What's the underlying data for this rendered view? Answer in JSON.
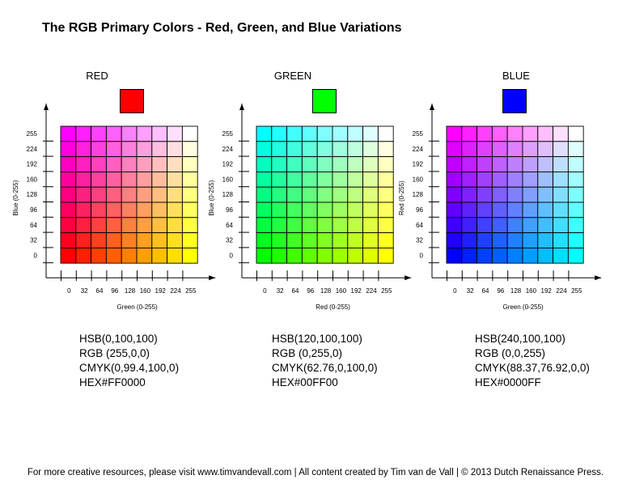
{
  "title": "The RGB Primary Colors - Red, Green, and Blue Variations",
  "footer": "For more creative resources, please visit www.timvandevall.com | All content created by Tim van de Vall | © 2013 Dutch Renaissance Press.",
  "panels": [
    {
      "name": "RED",
      "swatch_color": "#FF0000",
      "x_label": "Green (0-255)",
      "y_label": "Blue (0-255)",
      "x_ticks": [
        "0",
        "32",
        "64",
        "96",
        "128",
        "160",
        "192",
        "224",
        "255"
      ],
      "y_ticks": [
        "255",
        "224",
        "192",
        "160",
        "128",
        "96",
        "64",
        "32",
        "0"
      ],
      "base_rgb": [
        255,
        0,
        0
      ],
      "x_channel": 1,
      "y_channel": 2,
      "hsb": "HSB(0,100,100)",
      "rgb": "RGB (255,0,0)",
      "cmyk": "CMYK(0,99.4,100,0)",
      "hex": "HEX#FF0000"
    },
    {
      "name": "GREEN",
      "swatch_color": "#00FF00",
      "x_label": "Red (0-255)",
      "y_label": "Blue (0-255)",
      "x_ticks": [
        "0",
        "32",
        "64",
        "96",
        "128",
        "160",
        "192",
        "224",
        "255"
      ],
      "y_ticks": [
        "255",
        "224",
        "192",
        "160",
        "128",
        "96",
        "64",
        "32",
        "0"
      ],
      "base_rgb": [
        0,
        255,
        0
      ],
      "x_channel": 0,
      "y_channel": 2,
      "hsb": "HSB(120,100,100)",
      "rgb": "RGB (0,255,0)",
      "cmyk": "CMYK(62.76,0,100,0)",
      "hex": "HEX#00FF00"
    },
    {
      "name": "BLUE",
      "swatch_color": "#0000FF",
      "x_label": "Green (0-255)",
      "y_label": "Red (0-255)",
      "x_ticks": [
        "0",
        "32",
        "64",
        "96",
        "128",
        "160",
        "192",
        "224",
        "255"
      ],
      "y_ticks": [
        "255",
        "224",
        "192",
        "160",
        "128",
        "96",
        "64",
        "32",
        "0"
      ],
      "base_rgb": [
        0,
        0,
        255
      ],
      "x_channel": 1,
      "y_channel": 0,
      "hsb": "HSB(240,100,100)",
      "rgb": "RGB (0,0,255)",
      "cmyk": "CMYK(88.37,76.92,0,0)",
      "hex": "HEX#0000FF"
    }
  ]
}
